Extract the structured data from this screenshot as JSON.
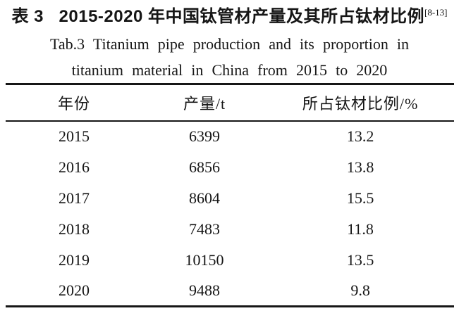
{
  "title": {
    "zh_label": "表 3",
    "zh_text": "2015-2020 年中国钛管材产量及其所占钛材比例",
    "citation": "[8-13]",
    "en_line1": "Tab.3  Titanium pipe production and its proportion in",
    "en_line2": "titanium material in China from 2015 to 2020"
  },
  "table": {
    "columns": [
      "年份",
      "产量/t",
      "所占钛材比例/%"
    ],
    "rows": [
      [
        "2015",
        "6399",
        "13.2"
      ],
      [
        "2016",
        "6856",
        "13.8"
      ],
      [
        "2017",
        "8604",
        "15.5"
      ],
      [
        "2018",
        "7483",
        "11.8"
      ],
      [
        "2019",
        "10150",
        "13.5"
      ],
      [
        "2020",
        "9488",
        "9.8"
      ]
    ]
  },
  "colors": {
    "text": "#161616",
    "rule": "#161616",
    "background": "#ffffff"
  }
}
